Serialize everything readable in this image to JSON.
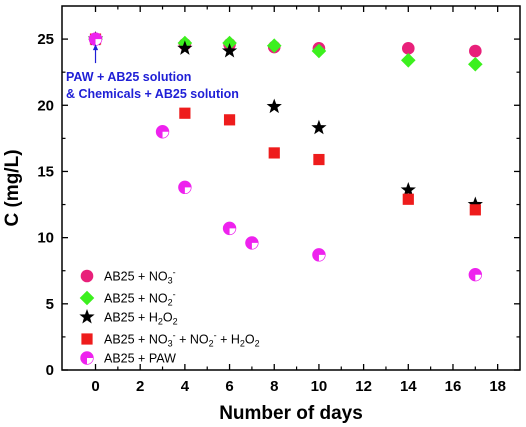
{
  "chart_data": {
    "type": "scatter",
    "xlabel": "Number of days",
    "ylabel": "C (mg/L)",
    "xlim": [
      -1.5,
      19
    ],
    "ylim": [
      0,
      27.5
    ],
    "xticks": [
      0,
      2,
      4,
      6,
      8,
      10,
      12,
      14,
      16,
      18
    ],
    "yticks": [
      0,
      5,
      10,
      15,
      20,
      25
    ],
    "grid": false,
    "legend_position": "bottom-left",
    "annotation": {
      "line1": "PAW + AB25 solution",
      "line2": "& Chemicals + AB25 solution",
      "color": "#1f1fd6",
      "points_to": [
        0,
        25
      ]
    },
    "series": [
      {
        "name": "AB25 + NO3-",
        "label": {
          "base": "AB25 + NO",
          "sub": "3",
          "sup": "-",
          "rest": ""
        },
        "marker": "circle",
        "color": "#e8207a",
        "x": [
          0,
          4,
          6,
          8,
          10,
          14,
          17
        ],
        "y": [
          25.0,
          24.6,
          24.6,
          24.4,
          24.3,
          24.3,
          24.1
        ]
      },
      {
        "name": "AB25 + NO2-",
        "label": {
          "base": "AB25 + NO",
          "sub": "2",
          "sup": "-",
          "rest": ""
        },
        "marker": "diamond",
        "color": "#3cf01e",
        "x": [
          0,
          4,
          6,
          8,
          10,
          14,
          17
        ],
        "y": [
          25.0,
          24.7,
          24.7,
          24.5,
          24.1,
          23.4,
          23.1
        ]
      },
      {
        "name": "AB25 + H2O2",
        "label": {
          "base": "AB25 + H",
          "sub": "2",
          "sup": "",
          "rest": "O",
          "sub2": "2"
        },
        "marker": "star",
        "color": "#000000",
        "x": [
          0,
          4,
          6,
          8,
          10,
          14,
          17
        ],
        "y": [
          25.0,
          24.3,
          24.1,
          19.9,
          18.3,
          13.6,
          12.5
        ]
      },
      {
        "name": "AB25 + NO3- + NO2- + H2O2",
        "label": {
          "rich": true
        },
        "marker": "square",
        "color": "#ee1c1c",
        "x": [
          0,
          4,
          6,
          8,
          10,
          14,
          17
        ],
        "y": [
          25.0,
          19.4,
          18.9,
          16.4,
          15.9,
          12.9,
          12.1
        ]
      },
      {
        "name": "AB25 + PAW",
        "label": {
          "base": "AB25 + PAW",
          "sub": "",
          "sup": "",
          "rest": ""
        },
        "marker": "halfcircle",
        "color": "#ee22ee",
        "x": [
          0,
          3,
          4,
          6,
          7,
          10,
          17
        ],
        "y": [
          25.0,
          18.0,
          13.8,
          10.7,
          9.6,
          8.7,
          7.2
        ]
      }
    ]
  }
}
